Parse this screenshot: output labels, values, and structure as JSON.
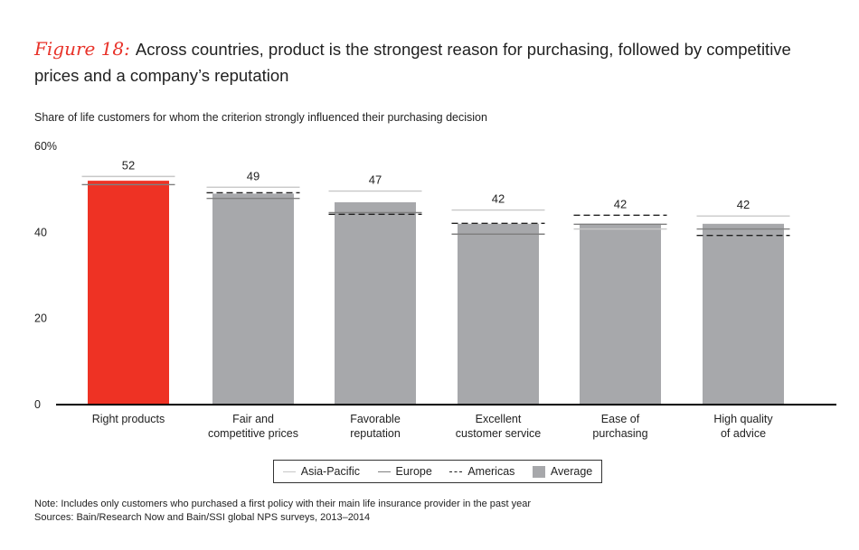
{
  "title": {
    "figure": "Figure 18:",
    "text": "Across countries, product is the strongest reason for purchasing, followed by competitive prices and a company’s reputation"
  },
  "subtitle": "Share of life customers for whom the criterion strongly influenced their purchasing decision",
  "chart_data": {
    "type": "bar",
    "categories": [
      "Right products",
      "Fair and competitive prices",
      "Favorable reputation",
      "Excellent customer service",
      "Ease of purchasing",
      "High quality of advice"
    ],
    "category_lines": [
      [
        "Right products"
      ],
      [
        "Fair and",
        "competitive prices"
      ],
      [
        "Favorable",
        "reputation"
      ],
      [
        "Excellent",
        "customer service"
      ],
      [
        "Ease of",
        "purchasing"
      ],
      [
        "High quality",
        "of advice"
      ]
    ],
    "ylim": [
      0,
      60
    ],
    "yticks": [
      0,
      20,
      40,
      60
    ],
    "ytick_labels": [
      "0",
      "20",
      "40",
      "60%"
    ],
    "grid": false,
    "legend_placement": "bottom",
    "series": [
      {
        "name": "Average",
        "style": "bar",
        "values": [
          52,
          49,
          47,
          42,
          42,
          42
        ],
        "labels": [
          "52",
          "49",
          "47",
          "42",
          "42",
          "42"
        ]
      },
      {
        "name": "Asia-Pacific",
        "style": "line-light",
        "values": [
          53,
          50.5,
          49.6,
          45.2,
          40.8,
          43.8
        ]
      },
      {
        "name": "Europe",
        "style": "line-dark",
        "values": [
          51.1,
          47.9,
          44.6,
          39.6,
          41.9,
          40.8
        ]
      },
      {
        "name": "Americas",
        "style": "dashed",
        "values": [
          null,
          49.2,
          44.2,
          42.1,
          44.0,
          39.3
        ]
      }
    ],
    "highlight_index": 0,
    "colors": {
      "highlight": "#ee3224",
      "bar": "#a7a8ab",
      "asia": "#c8c8c8",
      "europe": "#808080",
      "americas": "#222222",
      "axis": "#000000"
    }
  },
  "legend": [
    "Asia-Pacific",
    "Europe",
    "Americas",
    "Average"
  ],
  "notes": {
    "note": "Note: Includes only customers who purchased a first policy with their main life insurance provider in the past year",
    "sources": "Sources: Bain/Research Now and Bain/SSI global NPS surveys, 2013–2014"
  }
}
